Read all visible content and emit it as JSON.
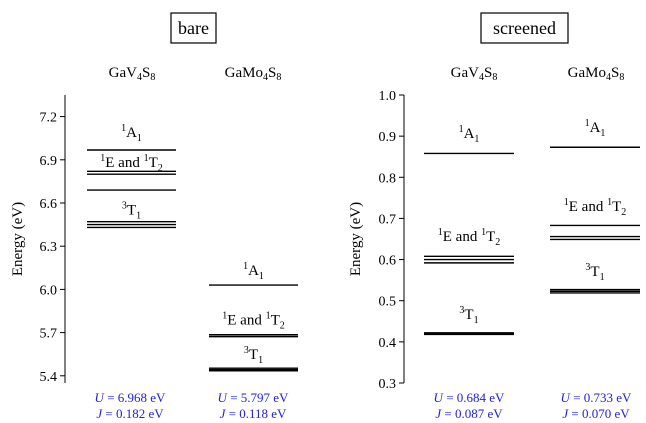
{
  "chart_data": [
    {
      "type": "energy-level",
      "title": "bare",
      "ylabel": "Energy (eV)",
      "ylim": [
        5.35,
        7.35
      ],
      "yticks": [
        5.4,
        5.7,
        6.0,
        6.3,
        6.6,
        6.9,
        7.2
      ],
      "ytick_labels": [
        "5.4",
        "5.7",
        "6.0",
        "6.3",
        "6.6",
        "6.9",
        "7.2"
      ],
      "columns": [
        {
          "compound": [
            "GaV",
            "4",
            "S",
            "8"
          ],
          "levels": [
            {
              "state": "1A1",
              "energies": [
                6.968
              ]
            },
            {
              "state": "1E and 1T2",
              "energies": [
                6.82,
                6.8
              ]
            },
            {
              "state": "1E and 1T2",
              "energies": [
                6.69
              ]
            },
            {
              "state": "3T1",
              "energies": [
                6.47,
                6.45,
                6.43
              ]
            }
          ],
          "annotations": [
            {
              "text": [
                "1",
                "A",
                "1"
              ],
              "y": 7.06
            },
            {
              "text": [
                "1",
                "E and ",
                "1",
                "T",
                "2"
              ],
              "y": 6.85
            },
            {
              "text": [
                "3",
                "T",
                "1"
              ],
              "y": 6.52
            }
          ],
          "params": {
            "U_label": "U",
            "U_text": " = 6.968 eV",
            "J_label": "J",
            "J_text": " = 0.182 eV"
          }
        },
        {
          "compound": [
            "GaMo",
            "4",
            "S",
            "8"
          ],
          "levels": [
            {
              "state": "1A1",
              "energies": [
                6.03
              ]
            },
            {
              "state": "1E and 1T2",
              "energies": [
                5.685,
                5.672
              ]
            },
            {
              "state": "3T1",
              "energies": [
                5.453,
                5.443,
                5.435
              ]
            }
          ],
          "annotations": [
            {
              "text": [
                "1",
                "A",
                "1"
              ],
              "y": 6.1
            },
            {
              "text": [
                "1",
                "E and ",
                "1",
                "T",
                "2"
              ],
              "y": 5.755
            },
            {
              "text": [
                "3",
                "T",
                "1"
              ],
              "y": 5.515
            }
          ],
          "params": {
            "U_label": "U",
            "U_text": " = 5.797 eV",
            "J_label": "J",
            "J_text": " = 0.118 eV"
          }
        }
      ]
    },
    {
      "type": "energy-level",
      "title": "screened",
      "ylabel": "Energy (eV)",
      "ylim": [
        0.3,
        1.0
      ],
      "yticks": [
        0.3,
        0.4,
        0.5,
        0.6,
        0.7,
        0.8,
        0.9,
        1.0
      ],
      "ytick_labels": [
        "0.3",
        "0.4",
        "0.5",
        "0.6",
        "0.7",
        "0.8",
        "0.9",
        "1.0"
      ],
      "columns": [
        {
          "compound": [
            "GaV",
            "4",
            "S",
            "8"
          ],
          "levels": [
            {
              "state": "1A1",
              "energies": [
                0.858
              ]
            },
            {
              "state": "1E and 1T2",
              "energies": [
                0.608,
                0.6,
                0.592
              ]
            },
            {
              "state": "3T1",
              "energies": [
                0.422,
                0.42,
                0.418
              ]
            }
          ],
          "annotations": [
            {
              "text": [
                "1",
                "A",
                "1"
              ],
              "y": 0.895
            },
            {
              "text": [
                "1",
                "E and ",
                "1",
                "T",
                "2"
              ],
              "y": 0.645
            },
            {
              "text": [
                "3",
                "T",
                "1"
              ],
              "y": 0.455
            }
          ],
          "params": {
            "U_label": "U",
            "U_text": " = 0.684 eV",
            "J_label": "J",
            "J_text": " = 0.087 eV"
          }
        },
        {
          "compound": [
            "GaMo",
            "4",
            "S",
            "8"
          ],
          "levels": [
            {
              "state": "1A1",
              "energies": [
                0.873
              ]
            },
            {
              "state": "1E and 1T2",
              "energies": [
                0.683,
                0.656,
                0.649
              ]
            },
            {
              "state": "3T1",
              "energies": [
                0.527,
                0.523,
                0.519
              ]
            }
          ],
          "annotations": [
            {
              "text": [
                "1",
                "A",
                "1"
              ],
              "y": 0.91
            },
            {
              "text": [
                "1",
                "E and ",
                "1",
                "T",
                "2"
              ],
              "y": 0.718
            },
            {
              "text": [
                "3",
                "T",
                "1"
              ],
              "y": 0.56
            }
          ],
          "params": {
            "U_label": "U",
            "U_text": " = 0.733 eV",
            "J_label": "J",
            "J_text": " = 0.070 eV"
          }
        }
      ]
    }
  ]
}
